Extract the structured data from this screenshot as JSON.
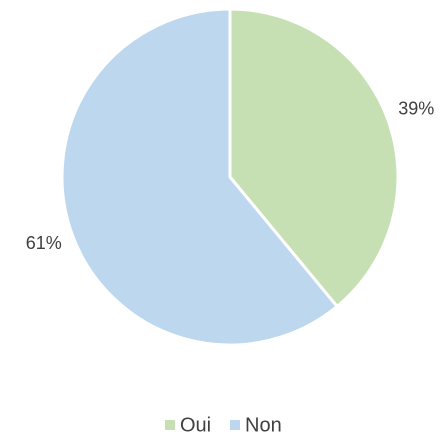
{
  "chart_data": {
    "type": "pie",
    "categories": [
      "Oui",
      "Non"
    ],
    "values": [
      39,
      61
    ],
    "value_labels": [
      "39%",
      "61%"
    ],
    "colors": [
      "#c6e0b4",
      "#bdd7ee"
    ],
    "legend": "bottom"
  }
}
